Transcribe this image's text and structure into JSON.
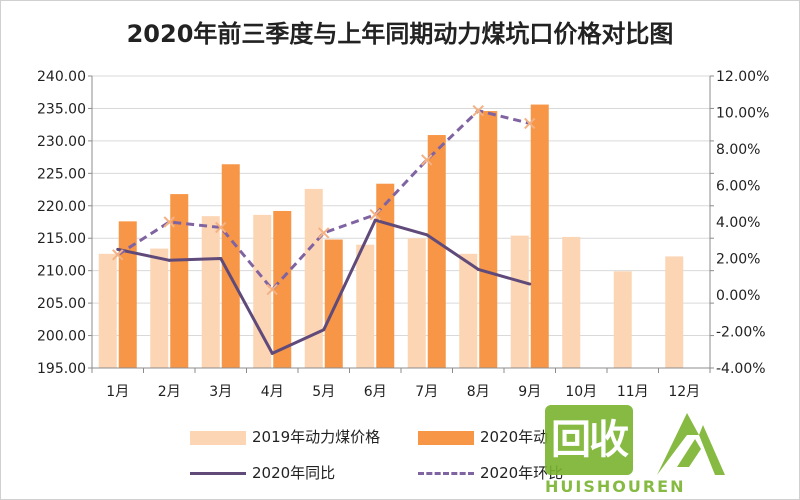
{
  "chart_data": {
    "type": "bar",
    "title": "2020年前三季度与上年同期动力煤坑口价格对比图",
    "categories": [
      "1月",
      "2月",
      "3月",
      "4月",
      "5月",
      "6月",
      "7月",
      "8月",
      "9月",
      "10月",
      "11月",
      "12月"
    ],
    "y_left": {
      "ylim": [
        195,
        240
      ],
      "ticks": [
        "195.00",
        "200.00",
        "205.00",
        "210.00",
        "215.00",
        "220.00",
        "225.00",
        "230.00",
        "235.00",
        "240.00"
      ]
    },
    "y_right": {
      "ylim": [
        -4,
        12
      ],
      "ticks": [
        "-4.00%",
        "-2.00%",
        "0.00%",
        "2.00%",
        "4.00%",
        "6.00%",
        "8.00%",
        "10.00%",
        "12.00%"
      ]
    },
    "series": [
      {
        "name": "2019年动力煤价格",
        "kind": "bar",
        "axis": "left",
        "color": "#fcd5b4",
        "values": [
          212.6,
          213.4,
          218.4,
          218.6,
          222.6,
          214.0,
          215.0,
          212.6,
          215.4,
          215.2,
          209.9,
          212.2
        ]
      },
      {
        "name": "2020年动力煤价格",
        "kind": "bar",
        "axis": "left",
        "color": "#f79646",
        "values": [
          217.6,
          221.8,
          226.4,
          219.2,
          214.8,
          223.4,
          230.9,
          234.6,
          235.6,
          null,
          null,
          null
        ]
      },
      {
        "name": "2020年同比",
        "kind": "line",
        "axis": "right",
        "color": "#5f4a7a",
        "values": [
          2.5,
          1.9,
          2.0,
          -3.2,
          -1.9,
          4.1,
          3.3,
          1.4,
          0.6,
          null,
          null,
          null
        ]
      },
      {
        "name": "2020年环比",
        "kind": "dashed-line",
        "axis": "right",
        "color": "#8064a2",
        "values": [
          2.2,
          4.0,
          3.7,
          0.3,
          3.4,
          4.4,
          7.4,
          10.1,
          9.4,
          null,
          null,
          null
        ]
      }
    ]
  },
  "legend": {
    "bar2019": "2019年动力煤价格",
    "bar2020": "2020年动",
    "line_yoy": "2020年同比",
    "line_mom": "2020年环比"
  },
  "watermark": {
    "cn": "回收",
    "roman": "HUISHOUREN"
  }
}
